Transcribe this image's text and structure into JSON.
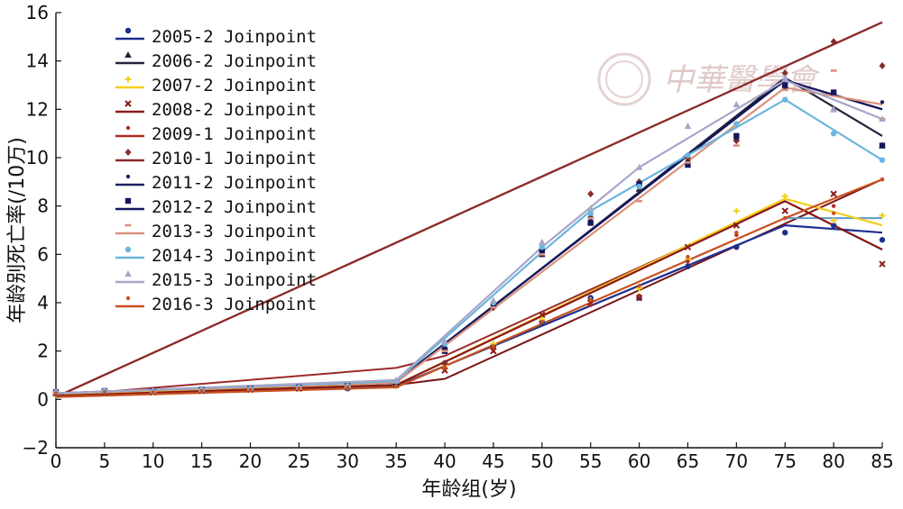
{
  "chart_data": {
    "type": "line",
    "title": "",
    "xlabel": "年龄组(岁)",
    "ylabel": "年龄别死亡率(/10万)",
    "xlim": [
      0,
      85
    ],
    "ylim": [
      -2,
      16
    ],
    "x_ticks": [
      "0",
      "5",
      "10",
      "15",
      "20",
      "25",
      "30",
      "35",
      "40",
      "45",
      "50",
      "55",
      "60",
      "65",
      "70",
      "75",
      "80",
      "85"
    ],
    "y_ticks": [
      "−2",
      "0",
      "2",
      "4",
      "6",
      "8",
      "10",
      "12",
      "14",
      "16"
    ],
    "grid": false,
    "legend_position": "top-left",
    "x": [
      0,
      5,
      10,
      15,
      20,
      25,
      30,
      35,
      40,
      45,
      50,
      55,
      60,
      65,
      70,
      75,
      80,
      85
    ],
    "series": [
      {
        "name": "2005-2 Joinpoint",
        "color": "#1f2f8f",
        "marker": "circle",
        "points": [
          0.25,
          0.35,
          0.32,
          0.35,
          0.4,
          0.45,
          0.45,
          0.6,
          1.5,
          2.2,
          3.2,
          4.2,
          4.2,
          5.5,
          6.3,
          6.9,
          7.2,
          6.6
        ],
        "line": [
          [
            0,
            0.2
          ],
          [
            35,
            0.55
          ],
          [
            75,
            7.2
          ],
          [
            85,
            6.9
          ]
        ]
      },
      {
        "name": "2006-2 Joinpoint",
        "color": "#22223a",
        "marker": "triangle",
        "points": [
          0.3,
          0.35,
          0.35,
          0.38,
          0.42,
          0.5,
          0.55,
          0.7,
          2.2,
          3.9,
          6.0,
          7.6,
          8.7,
          9.9,
          10.8,
          13.0,
          12.0,
          10.5
        ],
        "line": [
          [
            0,
            0.25
          ],
          [
            35,
            0.7
          ],
          [
            75,
            13.3
          ],
          [
            85,
            10.9
          ]
        ]
      },
      {
        "name": "2007-2 Joinpoint",
        "color": "#f2cf1a",
        "marker": "plus",
        "points": [
          0.2,
          0.3,
          0.3,
          0.35,
          0.4,
          0.45,
          0.5,
          0.55,
          1.4,
          2.3,
          3.3,
          4.1,
          4.6,
          5.8,
          7.8,
          8.4,
          7.4,
          7.6
        ],
        "line": [
          [
            0,
            0.2
          ],
          [
            35,
            0.6
          ],
          [
            75,
            8.3
          ],
          [
            85,
            7.2
          ]
        ]
      },
      {
        "name": "2008-2 Joinpoint",
        "color": "#8b1a1a",
        "marker": "cross",
        "points": [
          0.25,
          0.3,
          0.3,
          0.35,
          0.4,
          0.45,
          0.5,
          0.6,
          1.2,
          2.0,
          3.5,
          4.0,
          4.2,
          6.3,
          7.2,
          7.8,
          8.5,
          5.6
        ],
        "line": [
          [
            0,
            0.15
          ],
          [
            35,
            0.6
          ],
          [
            75,
            8.2
          ],
          [
            85,
            6.2
          ]
        ]
      },
      {
        "name": "2009-1 Joinpoint",
        "color": "#b22a1f",
        "marker": "dot",
        "points": [
          0.2,
          0.3,
          0.3,
          0.35,
          0.4,
          0.45,
          0.5,
          0.55,
          1.3,
          2.1,
          3.2,
          3.9,
          4.3,
          5.7,
          6.8,
          7.5,
          8.0,
          9.1
        ],
        "line": [
          [
            0,
            0.1
          ],
          [
            85,
            15.6
          ]
        ]
      },
      {
        "name": "2010-1 Joinpoint",
        "color": "#8a2c2c",
        "marker": "diamond",
        "points": [
          0.25,
          0.3,
          0.35,
          0.4,
          0.45,
          0.5,
          0.55,
          0.6,
          1.5,
          3.8,
          6.2,
          8.5,
          9.0,
          10.0,
          10.7,
          13.5,
          14.8,
          13.8
        ],
        "line": [
          [
            0,
            0.1
          ],
          [
            85,
            15.6
          ]
        ]
      },
      {
        "name": "2011-2 Joinpoint",
        "color": "#1a1f5e",
        "marker": "dot",
        "points": [
          0.3,
          0.35,
          0.35,
          0.4,
          0.45,
          0.5,
          0.55,
          0.7,
          2.1,
          3.9,
          6.0,
          7.4,
          8.8,
          9.8,
          10.8,
          12.9,
          12.0,
          12.3
        ],
        "line": [
          [
            0,
            0.25
          ],
          [
            35,
            0.75
          ],
          [
            75,
            13.2
          ],
          [
            85,
            12.0
          ]
        ]
      },
      {
        "name": "2012-2 Joinpoint",
        "color": "#14175e",
        "marker": "square",
        "points": [
          0.3,
          0.35,
          0.35,
          0.4,
          0.45,
          0.5,
          0.55,
          0.7,
          2.0,
          3.9,
          6.1,
          7.3,
          8.9,
          9.7,
          10.9,
          13.0,
          12.7,
          10.5
        ],
        "line": [
          [
            0,
            0.25
          ],
          [
            35,
            0.75
          ],
          [
            75,
            13.2
          ],
          [
            85,
            12.0
          ]
        ]
      },
      {
        "name": "2013-3 Joinpoint",
        "color": "#d9927e",
        "marker": "dash",
        "points": [
          0.3,
          0.35,
          0.35,
          0.4,
          0.45,
          0.5,
          0.55,
          0.7,
          2.0,
          3.8,
          6.0,
          7.5,
          8.2,
          9.8,
          10.5,
          12.8,
          13.6,
          11.6
        ],
        "line": [
          [
            0,
            0.25
          ],
          [
            35,
            0.7
          ],
          [
            75,
            12.9
          ],
          [
            85,
            12.2
          ]
        ]
      },
      {
        "name": "2014-3 Joinpoint",
        "color": "#6cb6dc",
        "marker": "circle",
        "points": [
          0.3,
          0.35,
          0.35,
          0.4,
          0.45,
          0.5,
          0.55,
          0.75,
          2.3,
          4.0,
          6.3,
          7.7,
          8.8,
          10.1,
          11.4,
          12.4,
          11.0,
          9.9
        ],
        "line": [
          [
            0,
            0.25
          ],
          [
            35,
            0.75
          ],
          [
            50,
            6.1
          ],
          [
            55,
            7.8
          ],
          [
            75,
            12.4
          ],
          [
            85,
            9.9
          ]
        ]
      },
      {
        "name": "2015-3 Joinpoint",
        "color": "#a6a6c8",
        "marker": "triangle",
        "points": [
          0.3,
          0.35,
          0.35,
          0.4,
          0.45,
          0.5,
          0.55,
          0.8,
          2.4,
          4.1,
          6.5,
          7.9,
          9.6,
          11.3,
          12.2,
          13.3,
          12.0,
          11.6
        ],
        "line": [
          [
            0,
            0.25
          ],
          [
            35,
            0.8
          ],
          [
            50,
            6.3
          ],
          [
            60,
            9.6
          ],
          [
            75,
            13.2
          ],
          [
            85,
            11.6
          ]
        ]
      },
      {
        "name": "2016-3 Joinpoint",
        "color": "#c8501f",
        "marker": "dot",
        "points": [
          0.25,
          0.3,
          0.3,
          0.35,
          0.4,
          0.45,
          0.5,
          0.55,
          1.3,
          2.2,
          3.2,
          4.1,
          4.7,
          5.9,
          6.9,
          7.5,
          7.7,
          9.1
        ],
        "line": [
          [
            0,
            0.1
          ],
          [
            35,
            0.5
          ],
          [
            75,
            7.5
          ],
          [
            85,
            9.1
          ]
        ]
      }
    ],
    "extra_lines": [
      {
        "series": "2008-2 Joinpoint",
        "color": "#9c2a2a",
        "line": [
          [
            0,
            0.15
          ],
          [
            35,
            1.3
          ],
          [
            40,
            1.8
          ],
          [
            75,
            8.2
          ],
          [
            85,
            6.2
          ]
        ]
      },
      {
        "series": "2009-1 Joinpoint",
        "color": "#7a1515",
        "line": [
          [
            0,
            0.1
          ],
          [
            35,
            0.6
          ],
          [
            40,
            0.85
          ],
          [
            85,
            9.1
          ]
        ]
      },
      {
        "series": "2016-3 Joinpoint",
        "color": "#5d9ccc",
        "line": [
          [
            75,
            7.5
          ],
          [
            85,
            7.5
          ]
        ]
      }
    ]
  },
  "watermark": {
    "text": "中華醫學會",
    "color": "#e0c9c9"
  }
}
